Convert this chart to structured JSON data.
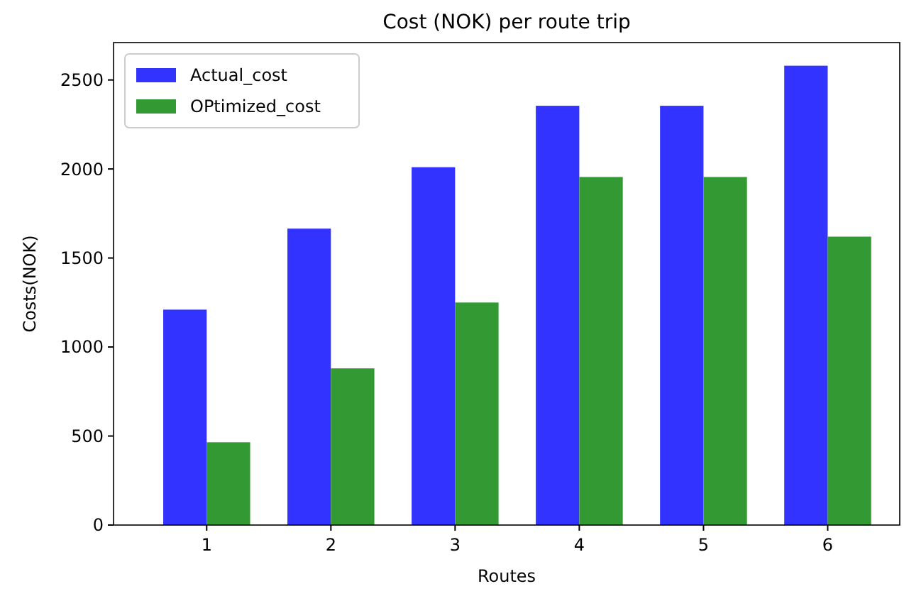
{
  "chart_data": {
    "type": "bar",
    "title": "Cost (NOK) per route trip",
    "xlabel": "Routes",
    "ylabel": "Costs(NOK)",
    "categories": [
      "1",
      "2",
      "3",
      "4",
      "5",
      "6"
    ],
    "series": [
      {
        "name": "Actual_cost",
        "color": "#3333ff",
        "values": [
          1210,
          1665,
          2010,
          2355,
          2355,
          2580
        ]
      },
      {
        "name": "OPtimized_cost",
        "color": "#339933",
        "values": [
          465,
          880,
          1250,
          1955,
          1955,
          1620
        ]
      }
    ],
    "ylim": [
      0,
      2710
    ],
    "yticks": [
      0,
      500,
      1000,
      1500,
      2000,
      2500
    ],
    "legend": "top left",
    "grid": false
  }
}
